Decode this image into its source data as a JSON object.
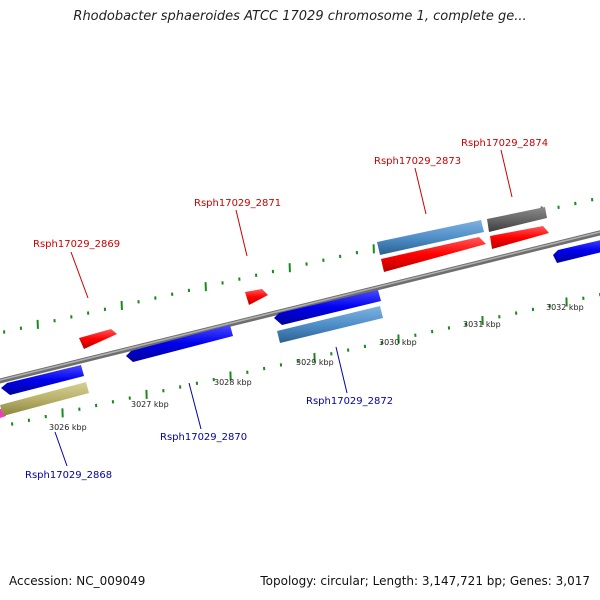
{
  "title": "Rhodobacter sphaeroides ATCC 17029 chromosome 1, complete ge...",
  "footer": {
    "accession": "Accession: NC_009049",
    "summary": "Topology: circular; Length: 3,147,721 bp; Genes: 3,017"
  },
  "colors": {
    "plus_strand_gene": "#ff0000",
    "minus_strand_gene": "#0000ee",
    "plus_label": "#cc0000",
    "minus_label": "#0000aa",
    "rna_or_other": "#4f8fc8",
    "pseudogene": "#666666",
    "misc_feature": "#b9b16a",
    "backbone": "#8a8a8a",
    "tick": "#1a8a1a"
  },
  "scale_labels": [
    "3026 kbp",
    "3027 kbp",
    "3028 kbp",
    "3029 kbp",
    "3030 kbp",
    "3031 kbp",
    "3032 kbp"
  ],
  "genes": [
    {
      "label": "Rsph17029_2868",
      "strand": "minus"
    },
    {
      "label": "Rsph17029_2869",
      "strand": "plus"
    },
    {
      "label": "Rsph17029_2870",
      "strand": "minus"
    },
    {
      "label": "Rsph17029_2871",
      "strand": "plus"
    },
    {
      "label": "Rsph17029_2872",
      "strand": "minus"
    },
    {
      "label": "Rsph17029_2873",
      "strand": "plus"
    },
    {
      "label": "Rsph17029_2874",
      "strand": "plus"
    }
  ]
}
